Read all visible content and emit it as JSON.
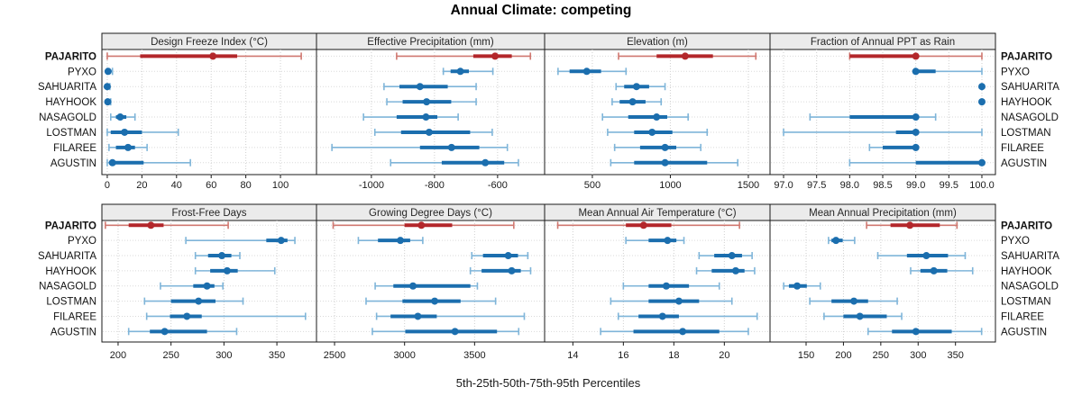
{
  "title": "Annual Climate: competing",
  "caption": "5th-25th-50th-75th-95th Percentiles",
  "stations": [
    "PAJARITO",
    "PYXO",
    "SAHUARITA",
    "HAYHOOK",
    "NASAGOLD",
    "LOSTMAN",
    "FILAREE",
    "AGUSTIN"
  ],
  "focal_station": "PAJARITO",
  "colors": {
    "focal": "#B3272B",
    "focal_light": "#D07870",
    "other": "#1B6EAE",
    "other_light": "#7FB5D9",
    "strip_fill": "#EBEBEB",
    "panel_border": "#1a1a1a",
    "gridline": "#CFCFCF",
    "tick_text": "#1a1a1a"
  },
  "chart_data": {
    "type": "dotplot-percentiles",
    "percentiles": [
      5,
      25,
      50,
      75,
      95
    ],
    "legend_note": "each row shows 5th-25th-50th-75th-95th percentile whisker, box and median dot; PAJARITO highlighted in red",
    "panels": [
      {
        "title": "Design Freeze Index (°C)",
        "xlim": [
          -3.1,
          120.8
        ],
        "ticks": [
          0,
          20,
          40,
          60,
          80,
          100
        ],
        "tick_labels": [
          "0",
          "20",
          "40",
          "60",
          "80",
          "100"
        ],
        "series": [
          {
            "name": "PAJARITO",
            "values": [
              0,
              19,
              61,
              75,
              112
            ]
          },
          {
            "name": "PYXO",
            "values": [
              0,
              0,
              0.5,
              1,
              3
            ]
          },
          {
            "name": "SAHUARITA",
            "values": [
              0,
              0,
              0,
              0.5,
              1.5
            ]
          },
          {
            "name": "HAYHOOK",
            "values": [
              0,
              0,
              0.3,
              1,
              2
            ]
          },
          {
            "name": "NASAGOLD",
            "values": [
              2,
              5,
              7.5,
              11,
              16
            ]
          },
          {
            "name": "LOSTMAN",
            "values": [
              0,
              2,
              10,
              20,
              41
            ]
          },
          {
            "name": "FILAREE",
            "values": [
              1,
              5,
              12,
              16,
              23
            ]
          },
          {
            "name": "AGUSTIN",
            "values": [
              0,
              1,
              3,
              21,
              48
            ]
          }
        ]
      },
      {
        "title": "Effective Precipitation (mm)",
        "xlim": [
          -1174,
          -451
        ],
        "ticks": [
          -1000,
          -800,
          -600
        ],
        "tick_labels": [
          "-1000",
          "-800",
          "-600"
        ],
        "series": [
          {
            "name": "PAJARITO",
            "values": [
              -920,
              -677,
              -608,
              -555,
              -496
            ]
          },
          {
            "name": "PYXO",
            "values": [
              -772,
              -749,
              -718,
              -691,
              -615
            ]
          },
          {
            "name": "SAHUARITA",
            "values": [
              -960,
              -911,
              -846,
              -758,
              -668
            ]
          },
          {
            "name": "HAYHOOK",
            "values": [
              -951,
              -901,
              -825,
              -747,
              -668
            ]
          },
          {
            "name": "NASAGOLD",
            "values": [
              -1025,
              -920,
              -827,
              -791,
              -725
            ]
          },
          {
            "name": "LOSTMAN",
            "values": [
              -989,
              -906,
              -817,
              -687,
              -617
            ]
          },
          {
            "name": "FILAREE",
            "values": [
              -1125,
              -846,
              -746,
              -658,
              -569
            ]
          },
          {
            "name": "AGUSTIN",
            "values": [
              -939,
              -777,
              -639,
              -579,
              -534
            ]
          }
        ]
      },
      {
        "title": "Elevation (m)",
        "xlim": [
          194,
          1639
        ],
        "ticks": [
          500,
          1000,
          1500
        ],
        "tick_labels": [
          "500",
          "1000",
          "1500"
        ],
        "series": [
          {
            "name": "PAJARITO",
            "values": [
              668,
              912,
              1095,
              1273,
              1548
            ]
          },
          {
            "name": "PYXO",
            "values": [
              280,
              354,
              464,
              556,
              716
            ]
          },
          {
            "name": "SAHUARITA",
            "values": [
              652,
              704,
              783,
              864,
              966
            ]
          },
          {
            "name": "HAYHOOK",
            "values": [
              627,
              675,
              758,
              841,
              941
            ]
          },
          {
            "name": "NASAGOLD",
            "values": [
              565,
              730,
              912,
              980,
              1114
            ]
          },
          {
            "name": "LOSTMAN",
            "values": [
              598,
              768,
              883,
              1013,
              1236
            ]
          },
          {
            "name": "FILAREE",
            "values": [
              643,
              806,
              966,
              1038,
              1195
            ]
          },
          {
            "name": "AGUSTIN",
            "values": [
              618,
              768,
              966,
              1236,
              1432
            ]
          }
        ]
      },
      {
        "title": "Fraction of Annual PPT as Rain",
        "xlim": [
          96.795,
          100.205
        ],
        "ticks": [
          97.0,
          97.5,
          98.0,
          98.5,
          99.0,
          99.5,
          100.0
        ],
        "tick_labels": [
          "97.0",
          "97.5",
          "98.0",
          "98.5",
          "99.0",
          "99.5",
          "100.0"
        ],
        "series": [
          {
            "name": "PAJARITO",
            "values": [
              98.0,
              98.0,
              99.0,
              99.0,
              100.0
            ]
          },
          {
            "name": "PYXO",
            "values": [
              99.0,
              99.0,
              99.0,
              99.3,
              100.0
            ]
          },
          {
            "name": "SAHUARITA",
            "values": [
              100.0,
              100.0,
              100.0,
              100.0,
              100.0
            ]
          },
          {
            "name": "HAYHOOK",
            "values": [
              100.0,
              100.0,
              100.0,
              100.0,
              100.0
            ]
          },
          {
            "name": "NASAGOLD",
            "values": [
              97.4,
              98.0,
              99.0,
              99.0,
              99.3
            ]
          },
          {
            "name": "LOSTMAN",
            "values": [
              97.0,
              98.7,
              99.0,
              99.0,
              100.0
            ]
          },
          {
            "name": "FILAREE",
            "values": [
              98.3,
              98.5,
              99.0,
              99.0,
              99.0
            ]
          },
          {
            "name": "AGUSTIN",
            "values": [
              98.0,
              99.0,
              100.0,
              100.0,
              100.0
            ]
          }
        ]
      },
      {
        "title": "Frost-Free Days",
        "xlim": [
          184.7,
          387.4
        ],
        "ticks": [
          200,
          250,
          300,
          350
        ],
        "tick_labels": [
          "200",
          "250",
          "300",
          "350"
        ],
        "series": [
          {
            "name": "PAJARITO",
            "values": [
              188,
              210,
              231,
              243,
              304
            ]
          },
          {
            "name": "PYXO",
            "values": [
              264,
              340,
              354,
              360,
              367
            ]
          },
          {
            "name": "SAHUARITA",
            "values": [
              273,
              285,
              298,
              307,
              315
            ]
          },
          {
            "name": "HAYHOOK",
            "values": [
              273,
              287,
              303,
              313,
              348
            ]
          },
          {
            "name": "NASAGOLD",
            "values": [
              240,
              271,
              284,
              291,
              299
            ]
          },
          {
            "name": "LOSTMAN",
            "values": [
              225,
              250,
              276,
              292,
              318
            ]
          },
          {
            "name": "FILAREE",
            "values": [
              227,
              249,
              265,
              279,
              377
            ]
          },
          {
            "name": "AGUSTIN",
            "values": [
              210,
              230,
              244,
              284,
              312
            ]
          }
        ]
      },
      {
        "title": "Growing Degree Days (°C)",
        "xlim": [
          2371,
          4000
        ],
        "ticks": [
          2500,
          3000,
          3500
        ],
        "tick_labels": [
          "2500",
          "3000",
          "3500"
        ],
        "series": [
          {
            "name": "PAJARITO",
            "values": [
              2490,
              3000,
              3120,
              3340,
              3780
            ]
          },
          {
            "name": "PYXO",
            "values": [
              2670,
              2810,
              2970,
              3040,
              3130
            ]
          },
          {
            "name": "SAHUARITA",
            "values": [
              3480,
              3560,
              3740,
              3810,
              3880
            ]
          },
          {
            "name": "HAYHOOK",
            "values": [
              3470,
              3550,
              3765,
              3830,
              3900
            ]
          },
          {
            "name": "NASAGOLD",
            "values": [
              2790,
              2920,
              3060,
              3470,
              3520
            ]
          },
          {
            "name": "LOSTMAN",
            "values": [
              2725,
              2985,
              3215,
              3400,
              3650
            ]
          },
          {
            "name": "FILAREE",
            "values": [
              2800,
              2900,
              3095,
              3230,
              3855
            ]
          },
          {
            "name": "AGUSTIN",
            "values": [
              2770,
              3005,
              3360,
              3660,
              3815
            ]
          }
        ]
      },
      {
        "title": "Mean Annual Air Temperature (°C)",
        "xlim": [
          12.88,
          21.81
        ],
        "ticks": [
          14,
          16,
          18,
          20
        ],
        "tick_labels": [
          "14",
          "16",
          "18",
          "20"
        ],
        "series": [
          {
            "name": "PAJARITO",
            "values": [
              13.4,
              16.1,
              16.8,
              17.9,
              20.6
            ]
          },
          {
            "name": "PYXO",
            "values": [
              16.1,
              17.0,
              17.75,
              18.1,
              18.4
            ]
          },
          {
            "name": "SAHUARITA",
            "values": [
              19.0,
              19.6,
              20.3,
              20.7,
              21.1
            ]
          },
          {
            "name": "HAYHOOK",
            "values": [
              18.9,
              19.5,
              20.45,
              20.8,
              21.2
            ]
          },
          {
            "name": "NASAGOLD",
            "values": [
              16.0,
              17.0,
              17.7,
              18.6,
              19.8
            ]
          },
          {
            "name": "LOSTMAN",
            "values": [
              15.5,
              17.0,
              18.2,
              19.0,
              20.3
            ]
          },
          {
            "name": "FILAREE",
            "values": [
              15.8,
              16.6,
              17.55,
              18.2,
              21.3
            ]
          },
          {
            "name": "AGUSTIN",
            "values": [
              15.1,
              16.4,
              18.35,
              19.8,
              20.95
            ]
          }
        ]
      },
      {
        "title": "Mean Annual Precipitation (mm)",
        "xlim": [
          101.7,
          403.5
        ],
        "ticks": [
          150,
          200,
          250,
          300,
          350
        ],
        "tick_labels": [
          "150",
          "200",
          "250",
          "300",
          "350"
        ],
        "series": [
          {
            "name": "PAJARITO",
            "values": [
              231,
              263,
              289,
              329,
              352
            ]
          },
          {
            "name": "PYXO",
            "values": [
              180,
              184,
              190,
              199,
              215
            ]
          },
          {
            "name": "SAHUARITA",
            "values": [
              246,
              285,
              311,
              340,
              363
            ]
          },
          {
            "name": "HAYHOOK",
            "values": [
              290,
              303,
              321,
              339,
              373
            ]
          },
          {
            "name": "NASAGOLD",
            "values": [
              120,
              127,
              138,
              151,
              169
            ]
          },
          {
            "name": "LOSTMAN",
            "values": [
              155,
              184,
              214,
              233,
              272
            ]
          },
          {
            "name": "FILAREE",
            "values": [
              174,
              200,
              222,
              258,
              278
            ]
          },
          {
            "name": "AGUSTIN",
            "values": [
              233,
              265,
              297,
              345,
              385
            ]
          }
        ]
      }
    ]
  }
}
